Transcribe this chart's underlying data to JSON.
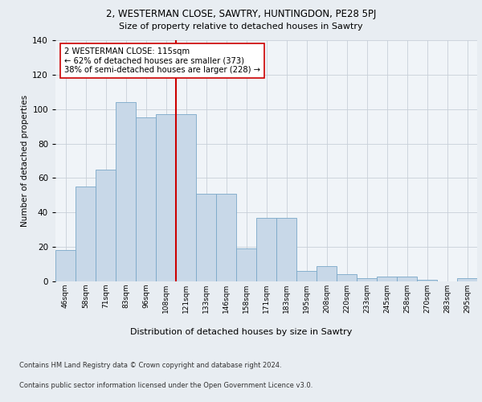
{
  "title_line1": "2, WESTERMAN CLOSE, SAWTRY, HUNTINGDON, PE28 5PJ",
  "title_line2": "Size of property relative to detached houses in Sawtry",
  "xlabel": "Distribution of detached houses by size in Sawtry",
  "ylabel": "Number of detached properties",
  "categories": [
    "46sqm",
    "58sqm",
    "71sqm",
    "83sqm",
    "96sqm",
    "108sqm",
    "121sqm",
    "133sqm",
    "146sqm",
    "158sqm",
    "171sqm",
    "183sqm",
    "195sqm",
    "208sqm",
    "220sqm",
    "233sqm",
    "245sqm",
    "258sqm",
    "270sqm",
    "283sqm",
    "295sqm"
  ],
  "values": [
    18,
    55,
    65,
    104,
    95,
    97,
    97,
    51,
    51,
    19,
    37,
    37,
    6,
    9,
    4,
    2,
    3,
    3,
    1,
    0,
    2
  ],
  "bar_color": "#c8d8e8",
  "bar_edge_color": "#7aa8c8",
  "vline_color": "#cc0000",
  "vline_x_index": 6,
  "annotation_text": "2 WESTERMAN CLOSE: 115sqm\n← 62% of detached houses are smaller (373)\n38% of semi-detached houses are larger (228) →",
  "annotation_box_color": "#ffffff",
  "annotation_box_edge": "#cc0000",
  "ylim": [
    0,
    140
  ],
  "yticks": [
    0,
    20,
    40,
    60,
    80,
    100,
    120,
    140
  ],
  "background_color": "#e8edf2",
  "plot_background": "#f0f4f8",
  "footer_line1": "Contains HM Land Registry data © Crown copyright and database right 2024.",
  "footer_line2": "Contains public sector information licensed under the Open Government Licence v3.0.",
  "grid_color": "#c8cfd8"
}
